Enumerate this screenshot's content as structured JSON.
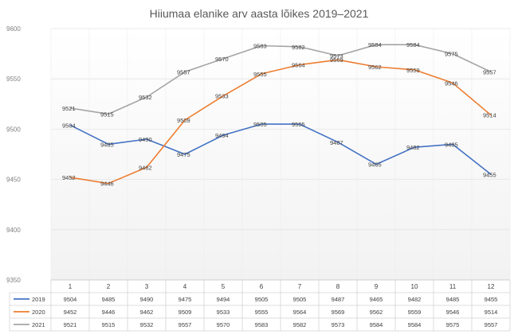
{
  "chart_data": {
    "type": "line",
    "title": "Hiiumaa elanike arv aasta lõikes 2019–2021",
    "categories": [
      "1",
      "2",
      "3",
      "4",
      "5",
      "6",
      "7",
      "8",
      "9",
      "10",
      "11",
      "12"
    ],
    "ylim": [
      9350,
      9600
    ],
    "yticks": [
      9350,
      9400,
      9450,
      9500,
      9550,
      9600
    ],
    "grid": true,
    "legend": "data-table-bottom",
    "series": [
      {
        "name": "2019",
        "color": "#4472c4",
        "values": [
          9504,
          9485,
          9490,
          9475,
          9494,
          9505,
          9505,
          9487,
          9465,
          9482,
          9485,
          9455
        ]
      },
      {
        "name": "2020",
        "color": "#ed7d31",
        "values": [
          9452,
          9446,
          9462,
          9509,
          9533,
          9555,
          9564,
          9569,
          9562,
          9559,
          9546,
          9514
        ]
      },
      {
        "name": "2021",
        "color": "#a5a5a5",
        "values": [
          9521,
          9515,
          9532,
          9557,
          9570,
          9583,
          9582,
          9573,
          9584,
          9584,
          9575,
          9557
        ]
      }
    ]
  }
}
